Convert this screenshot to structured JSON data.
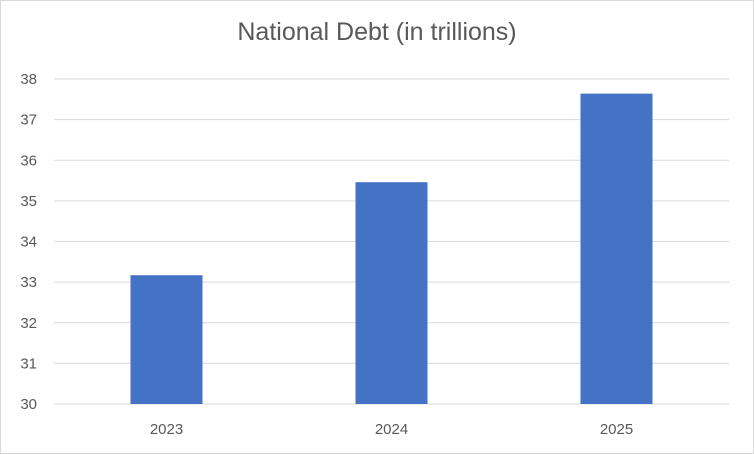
{
  "chart_data": {
    "type": "bar",
    "title": "National Debt (in trillions)",
    "categories": [
      "2023",
      "2024",
      "2025"
    ],
    "values": [
      33.17,
      35.46,
      37.64
    ],
    "ylim": [
      30,
      38
    ],
    "yticks": [
      "30",
      "31",
      "32",
      "33",
      "34",
      "35",
      "36",
      "37",
      "38"
    ],
    "xlabel": "",
    "ylabel": "",
    "grid": true,
    "legend": "none",
    "bar_color": "#4472C4",
    "grid_color": "#d9d9d9"
  }
}
